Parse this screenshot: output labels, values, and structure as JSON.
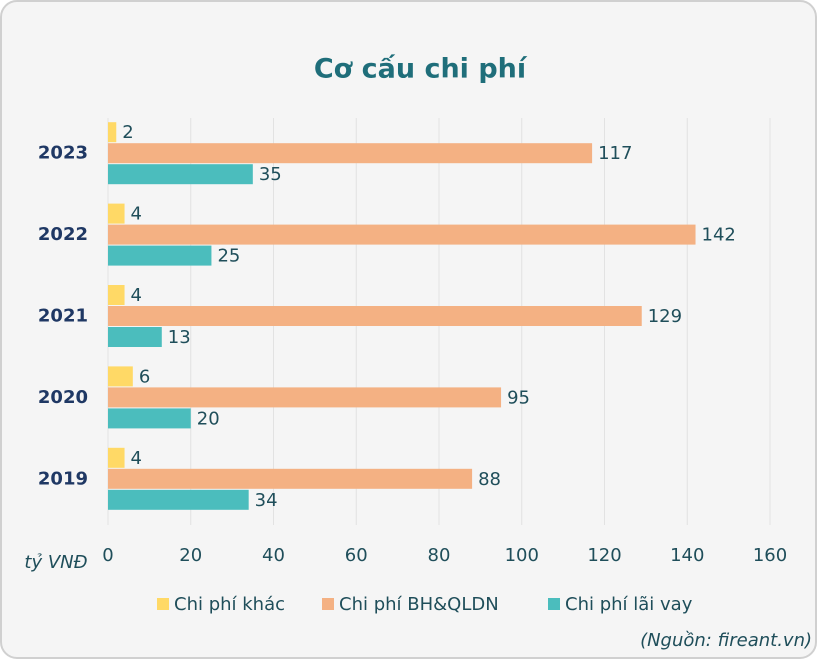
{
  "chart_data": {
    "type": "bar",
    "orientation": "horizontal",
    "title": "Cơ cấu chi phí",
    "x_label": "tỷ VNĐ",
    "source": "(Nguồn: fireant.vn)",
    "categories": [
      "2023",
      "2022",
      "2021",
      "2020",
      "2019"
    ],
    "series": [
      {
        "name": "Chi phí khác",
        "color": "#FFD966",
        "values": [
          2,
          4,
          4,
          6,
          4
        ]
      },
      {
        "name": "Chi phí BH&QLDN",
        "color": "#F4B183",
        "values": [
          117,
          142,
          129,
          95,
          88
        ]
      },
      {
        "name": "Chi phí lãi vay",
        "color": "#4BBDBD",
        "values": [
          35,
          25,
          13,
          20,
          34
        ]
      }
    ],
    "xlim": [
      0,
      160
    ],
    "xticks": [
      0,
      20,
      40,
      60,
      80,
      100,
      120,
      140,
      160
    ],
    "grid": true
  }
}
